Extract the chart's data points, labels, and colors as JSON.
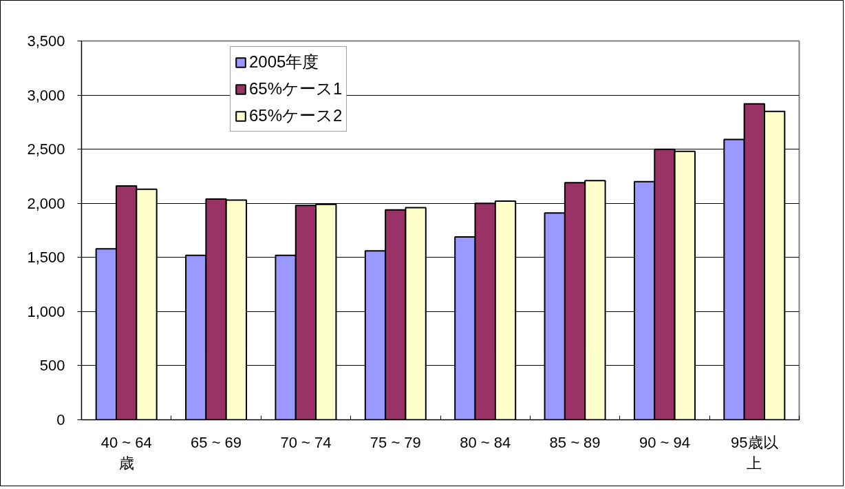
{
  "chart_data": {
    "type": "bar",
    "categories": [
      "40 ~ 64歳",
      "65 ~ 69",
      "70 ~ 74",
      "75 ~ 79",
      "80 ~ 84",
      "85 ~ 89",
      "90 ~ 94",
      "95歳以上"
    ],
    "series": [
      {
        "name": "2005年度",
        "color": "#9999ff",
        "values": [
          1580,
          1520,
          1520,
          1560,
          1690,
          1910,
          2200,
          2590
        ]
      },
      {
        "name": "65%ケース1",
        "color": "#993366",
        "values": [
          2160,
          2040,
          1980,
          1940,
          2000,
          2190,
          2500,
          2920
        ]
      },
      {
        "name": "65%ケース2",
        "color": "#ffffcc",
        "values": [
          2130,
          2030,
          1990,
          1960,
          2020,
          2210,
          2480,
          2850
        ]
      }
    ],
    "ylim": [
      0,
      3500
    ],
    "yticks": [
      0,
      500,
      {
        "value": 1000,
        "label": "1,000"
      },
      {
        "value": 1500,
        "label": "1,500"
      },
      {
        "value": 2000,
        "label": "2,000"
      },
      {
        "value": 2500,
        "label": "2,500"
      },
      {
        "value": 3000,
        "label": "3,000"
      },
      {
        "value": 3500,
        "label": "3,500"
      }
    ],
    "grid": "y",
    "legend": "top left"
  }
}
